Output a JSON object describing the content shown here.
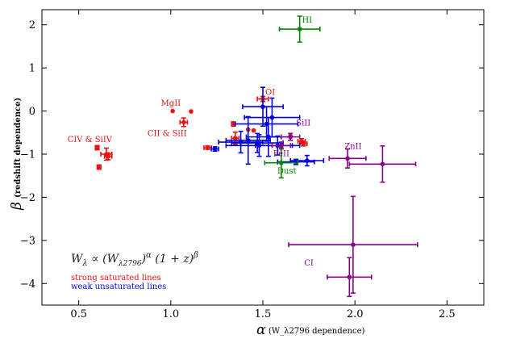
{
  "chart_data": {
    "type": "scatter",
    "title": "",
    "xlabel": {
      "main": "α",
      "sub": "(W_λ2796 dependence)"
    },
    "ylabel": {
      "main": "β",
      "sub": "(redshift dependence)"
    },
    "xlim": [
      0.3,
      2.7
    ],
    "ylim": [
      -4.5,
      2.35
    ],
    "xticks": [
      0.5,
      1.0,
      1.5,
      2.0,
      2.5
    ],
    "xtick_labels": [
      "0.5",
      "1.0",
      "1.5",
      "2.0",
      "2.5"
    ],
    "yticks": [
      2,
      1,
      0,
      -1,
      -2,
      -3,
      -4
    ],
    "ytick_labels": [
      "2",
      "1",
      "0",
      "−1",
      "−2",
      "−3",
      "−4"
    ],
    "grid": false,
    "colors": {
      "red": "#ee1111",
      "blue": "#0000dd",
      "green": "#008800",
      "purple": "#880088"
    },
    "formula": "W_λ ∝ (W_λ2796)^α (1+z)^β",
    "legend": [
      {
        "text": "strong saturated lines",
        "color": "#ee1111"
      },
      {
        "text": "weak unsaturated lines",
        "color": "#0000dd"
      }
    ],
    "annotations": [
      {
        "text": "HI",
        "x": 1.74,
        "y": 2.05,
        "color": "#008800"
      },
      {
        "text": "MgII",
        "x": 1.0,
        "y": 0.12,
        "color": "#ee1111"
      },
      {
        "text": "OI",
        "x": 1.54,
        "y": 0.38,
        "color": "#ee1111"
      },
      {
        "text": "SiII",
        "x": 1.72,
        "y": -0.34,
        "color": "#880088"
      },
      {
        "text": "CII & SiII",
        "x": 0.98,
        "y": -0.58,
        "color": "#ee1111"
      },
      {
        "text": "CIV & SiIV",
        "x": 0.56,
        "y": -0.72,
        "color": "#ee1111"
      },
      {
        "text": "FeII",
        "x": 1.6,
        "y": -1.05,
        "color": "#880088"
      },
      {
        "text": "ZnII",
        "x": 1.99,
        "y": -0.88,
        "color": "#880088"
      },
      {
        "text": "Dust",
        "x": 1.63,
        "y": -1.45,
        "color": "#008800"
      },
      {
        "text": "CI",
        "x": 1.75,
        "y": -3.58,
        "color": "#880088"
      }
    ],
    "series": [
      {
        "color": "#ee1111",
        "points": [
          {
            "x": 0.6,
            "y": -0.85,
            "xerr": 0.01,
            "yerr": 0.05
          },
          {
            "x": 0.61,
            "y": -1.3,
            "xerr": 0.01,
            "yerr": 0.05
          },
          {
            "x": 0.65,
            "y": -1.0,
            "xerr": 0.03,
            "yerr": 0.14
          },
          {
            "x": 0.66,
            "y": -1.05,
            "xerr": 0.02,
            "yerr": 0.08
          },
          {
            "x": 1.01,
            "y": 0.0,
            "xerr": 0.0,
            "yerr": 0.0
          },
          {
            "x": 1.11,
            "y": -0.01,
            "xerr": 0.0,
            "yerr": 0.0
          },
          {
            "x": 1.07,
            "y": -0.26,
            "xerr": 0.02,
            "yerr": 0.1
          },
          {
            "x": 1.2,
            "y": -0.85,
            "xerr": 0.02,
            "yerr": 0.04
          },
          {
            "x": 1.34,
            "y": -0.3,
            "xerr": 0.01,
            "yerr": 0.05
          },
          {
            "x": 1.35,
            "y": -0.63,
            "xerr": 0.02,
            "yerr": 0.14
          },
          {
            "x": 1.42,
            "y": -0.43,
            "xerr": 0.0,
            "yerr": 0.0
          },
          {
            "x": 1.45,
            "y": -0.45,
            "xerr": 0.0,
            "yerr": 0.0
          },
          {
            "x": 1.5,
            "y": 0.28,
            "xerr": 0.03,
            "yerr": 0.06
          },
          {
            "x": 1.65,
            "y": -0.58,
            "xerr": 0.0,
            "yerr": 0.0
          },
          {
            "x": 1.71,
            "y": -0.7,
            "xerr": 0.02,
            "yerr": 0.06
          },
          {
            "x": 1.72,
            "y": -0.76,
            "xerr": 0.02,
            "yerr": 0.05
          }
        ]
      },
      {
        "color": "#0000dd",
        "points": [
          {
            "x": 1.24,
            "y": -0.88,
            "xerr": 0.02,
            "yerr": 0.05
          },
          {
            "x": 1.5,
            "y": 0.1,
            "xerr": 0.11,
            "yerr": 0.45
          },
          {
            "x": 1.52,
            "y": -0.3,
            "xerr": 0.17,
            "yerr": 0.4
          },
          {
            "x": 1.55,
            "y": -0.15,
            "xerr": 0.15,
            "yerr": 0.45
          },
          {
            "x": 1.53,
            "y": -0.6,
            "xerr": 0.12,
            "yerr": 0.45
          },
          {
            "x": 1.42,
            "y": -0.68,
            "xerr": 0.12,
            "yerr": 0.55
          },
          {
            "x": 1.38,
            "y": -0.72,
            "xerr": 0.12,
            "yerr": 0.25
          },
          {
            "x": 1.47,
            "y": -0.74,
            "xerr": 0.14,
            "yerr": 0.22
          },
          {
            "x": 1.48,
            "y": -0.8,
            "xerr": 0.18,
            "yerr": 0.25
          },
          {
            "x": 1.58,
            "y": -0.8,
            "xerr": 0.12,
            "yerr": 0.22
          },
          {
            "x": 1.68,
            "y": -1.18,
            "xerr": 0.1,
            "yerr": 0.06
          },
          {
            "x": 1.74,
            "y": -1.15,
            "xerr": 0.09,
            "yerr": 0.12
          }
        ]
      },
      {
        "color": "#008800",
        "points": [
          {
            "x": 1.7,
            "y": 1.9,
            "xerr": 0.11,
            "yerr": 0.3
          },
          {
            "x": 1.6,
            "y": -1.2,
            "xerr": 0.09,
            "yerr": 0.35
          }
        ]
      },
      {
        "color": "#880088",
        "points": [
          {
            "x": 1.65,
            "y": -0.6,
            "xerr": 0.05,
            "yerr": 0.08
          },
          {
            "x": 1.6,
            "y": -0.8,
            "xerr": 0.05,
            "yerr": 0.08
          },
          {
            "x": 1.96,
            "y": -1.1,
            "xerr": 0.1,
            "yerr": 0.22
          },
          {
            "x": 2.15,
            "y": -1.23,
            "xerr": 0.18,
            "yerr": 0.42
          },
          {
            "x": 1.99,
            "y": -3.1,
            "xerr": 0.35,
            "yerr": 1.12
          },
          {
            "x": 1.97,
            "y": -3.85,
            "xerr": 0.12,
            "yerr": 0.45
          }
        ]
      }
    ]
  }
}
